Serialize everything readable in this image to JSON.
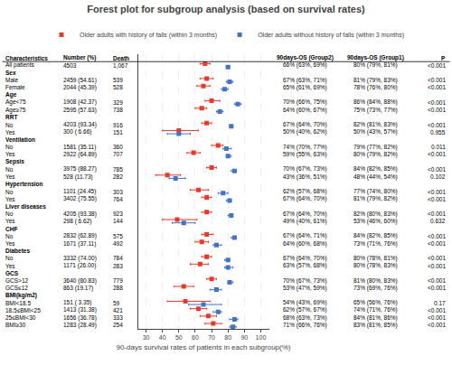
{
  "chart_data": {
    "type": "forest",
    "title": "Forest plot for subgroup analysis (based on survival rates)",
    "xlabel": "90-days survival rates of patients in each subgroup(%)",
    "xlim": [
      25,
      105
    ],
    "xticks": [
      30,
      40,
      50,
      60,
      70,
      80,
      90,
      100
    ],
    "grid": true,
    "columns": [
      "Characteristics",
      "Number (%)",
      "Death",
      "90days-OS (Group2)",
      "90days-OS (Group1)",
      "P"
    ],
    "categories": [
      "All patients",
      "Sex",
      "Male",
      "Female",
      "Age",
      "Age<75",
      "Age≥75",
      "RRT",
      "No",
      "Yes",
      "Ventilation",
      "No",
      "Yes",
      "Sepsis",
      "No",
      "Yes",
      "Hypertension",
      "No",
      "Yes",
      "Liver diseases",
      "No",
      "Yes",
      "CHF",
      "No",
      "Yes",
      "Diabetes",
      "No",
      "Yes",
      "GCS",
      "GCS>12",
      "GCS≤12",
      "BMI(kg/m2)",
      "BMI<18.5",
      "18.5≤BMI<25",
      "25≤BMI<30",
      "BMI≥30"
    ],
    "series": [
      {
        "name": "Older adults with history of falls (within 3 months)",
        "color": "#e8392a",
        "marker": "square",
        "values": [
          66,
          null,
          67,
          65,
          null,
          70,
          64,
          null,
          67,
          50,
          null,
          74,
          59,
          null,
          70,
          43,
          null,
          62,
          67,
          null,
          67,
          49,
          null,
          67,
          64,
          null,
          67,
          63,
          null,
          70,
          53,
          null,
          54,
          62,
          68,
          71
        ],
        "lo": [
          63,
          null,
          63,
          61,
          null,
          66,
          60,
          null,
          64,
          40,
          null,
          70,
          55,
          null,
          67,
          36,
          null,
          57,
          64,
          null,
          64,
          40,
          null,
          64,
          60,
          null,
          64,
          57,
          null,
          67,
          47,
          null,
          43,
          57,
          63,
          66
        ],
        "hi": [
          69,
          null,
          71,
          69,
          null,
          75,
          67,
          null,
          70,
          62,
          null,
          77,
          63,
          null,
          73,
          51,
          null,
          68,
          70,
          null,
          70,
          61,
          null,
          71,
          68,
          null,
          70,
          68,
          null,
          73,
          59,
          null,
          69,
          67,
          73,
          76
        ]
      },
      {
        "name": "Older adults without history of falls (within 3 months)",
        "color": "#4472c4",
        "marker": "square",
        "values": [
          80,
          null,
          81,
          78,
          null,
          86,
          75,
          null,
          82,
          50,
          null,
          79,
          80,
          null,
          84,
          48,
          null,
          77,
          81,
          null,
          82,
          53,
          null,
          84,
          73,
          null,
          80,
          80,
          null,
          81,
          73,
          null,
          65,
          74,
          84,
          83
        ],
        "lo": [
          79,
          null,
          79,
          76,
          null,
          84,
          73,
          null,
          81,
          43,
          null,
          77,
          79,
          null,
          82,
          44,
          null,
          74,
          79,
          null,
          80,
          46,
          null,
          82,
          71,
          null,
          78,
          78,
          null,
          80,
          69,
          null,
          56,
          71,
          81,
          81
        ],
        "hi": [
          81,
          null,
          83,
          80,
          null,
          88,
          77,
          null,
          83,
          57,
          null,
          82,
          82,
          null,
          85,
          54,
          null,
          80,
          82,
          null,
          83,
          60,
          null,
          85,
          76,
          null,
          81,
          83,
          null,
          83,
          76,
          null,
          76,
          76,
          86,
          85
        ]
      }
    ],
    "cells": [
      [
        "4503",
        "1,067",
        "66% (63%, 69%)",
        "80% (79%, 81%)",
        "<0.001"
      ],
      null,
      [
        "2459 (54.61)",
        "539",
        "67% (63%, 71%)",
        "81% (79%, 83%)",
        "<0.001"
      ],
      [
        "2044 (45.39)",
        "528",
        "65% (61%, 69%)",
        "78% (76%, 80%)",
        "<0.001"
      ],
      null,
      [
        "1908 (42.37)",
        "329",
        "70% (66%, 75%)",
        "86% (84%, 88%)",
        "<0.001"
      ],
      [
        "2595 (57.63)",
        "738",
        "64% (60%, 67%)",
        "75% (73%, 77%)",
        "<0.001"
      ],
      null,
      [
        "4203 (93.34)",
        "916",
        "67% (64%, 70%)",
        "82% (81%, 83%)",
        "<0.001"
      ],
      [
        "300 ( 6.66)",
        "151",
        "50% (40%, 62%)",
        "50% (43%, 57%)",
        "0.955"
      ],
      null,
      [
        "1581 (35.11)",
        "360",
        "74% (70%, 77%)",
        "79% (77%, 82%)",
        "0.011"
      ],
      [
        "2922 (64.89)",
        "707",
        "59% (55%, 63%)",
        "80% (79%, 82%)",
        "<0.001"
      ],
      null,
      [
        "3975 (88.27)",
        "785",
        "70% (67%, 73%)",
        "84% (82%, 85%)",
        "<0.001"
      ],
      [
        "528 (11.73)",
        "282",
        "43% (36%, 51%)",
        "48% (44%, 54%)",
        "0.102"
      ],
      null,
      [
        "1101 (24.45)",
        "303",
        "62% (57%, 68%)",
        "77% (74%, 80%)",
        "<0.001"
      ],
      [
        "3402 (75.55)",
        "764",
        "67% (64%, 70%)",
        "81% (79%, 82%)",
        "<0.001"
      ],
      null,
      [
        "4205 (93.38)",
        "923",
        "67% (64%, 70%)",
        "82% (80%, 83%)",
        "<0.001"
      ],
      [
        "298 ( 6.62)",
        "144",
        "49% (40%, 61%)",
        "53% (46%, 60%)",
        "0.632"
      ],
      null,
      [
        "2832 (62.89)",
        "575",
        "67% (64%, 71%)",
        "84% (82%, 85%)",
        "<0.001"
      ],
      [
        "1671 (37.11)",
        "492",
        "64% (60%, 68%)",
        "73% (71%, 76%)",
        "<0.001"
      ],
      null,
      [
        "3332 (74.00)",
        "784",
        "67% (64%, 70%)",
        "80% (78%, 81%)",
        "<0.001"
      ],
      [
        "1171 (26.00)",
        "283",
        "63% (57%, 68%)",
        "80% (78%, 83%)",
        "<0.001"
      ],
      null,
      [
        "3640 (80.83)",
        "779",
        "70% (67%, 73%)",
        "81% (80%, 83%)",
        "<0.001"
      ],
      [
        "863 (19.17)",
        "288",
        "53% (47%, 59%)",
        "73% (69%, 76%)",
        "<0.001"
      ],
      null,
      [
        "151 ( 3.35)",
        "59",
        "54% (43%, 69%)",
        "65% (56%, 76%)",
        "0.17"
      ],
      [
        "1413 (31.38)",
        "421",
        "62% (57%, 67%)",
        "74% (71%, 76%)",
        "<0.001"
      ],
      [
        "1656 (36.78)",
        "333",
        "68% (63%, 73%)",
        "84% (81%, 86%)",
        "<0.001"
      ],
      [
        "1283 (28.49)",
        "254",
        "71% (66%, 76%)",
        "83% (81%, 85%)",
        "<0.001"
      ]
    ]
  }
}
